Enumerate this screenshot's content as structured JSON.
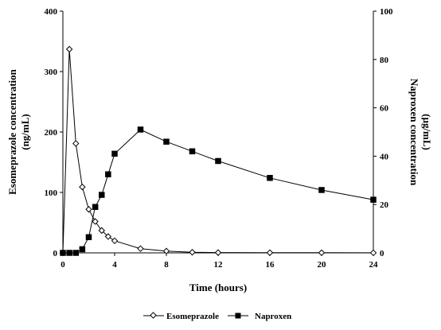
{
  "chart_data": {
    "type": "line",
    "xlabel": "Time  (hours)",
    "ylabel_left_line1": "Esomeprazole concentration",
    "ylabel_left_line2": "(ng/mL)",
    "ylabel_right_line1": "Naproxen concentration",
    "ylabel_right_line2": "(µg/mL)",
    "xlim": [
      0,
      24
    ],
    "ylim_left": [
      0,
      400
    ],
    "ylim_right": [
      0,
      100
    ],
    "x_ticks": [
      0,
      4,
      8,
      12,
      16,
      20,
      24
    ],
    "y_left_ticks": [
      0,
      100,
      200,
      300,
      400
    ],
    "y_right_ticks": [
      0,
      20,
      40,
      60,
      80,
      100
    ],
    "grid": false,
    "legend_position": "bottom-center",
    "series": [
      {
        "name": "Esomeprazole",
        "axis": "left",
        "marker": "diamond-open",
        "color": "#000000",
        "x": [
          0,
          0.5,
          1,
          1.5,
          2,
          2.5,
          3,
          3.5,
          4,
          6,
          8,
          10,
          12,
          16,
          20,
          24
        ],
        "y": [
          0,
          337,
          181,
          109,
          72,
          52,
          37,
          27,
          20,
          7,
          3,
          1,
          0.5,
          0.3,
          0.2,
          0.1
        ]
      },
      {
        "name": "Naproxen",
        "axis": "right",
        "marker": "square-filled",
        "color": "#000000",
        "x": [
          0,
          0.5,
          1,
          1.5,
          2,
          2.5,
          3,
          3.5,
          4,
          6,
          8,
          10,
          12,
          16,
          20,
          24
        ],
        "y": [
          0,
          0,
          0,
          1.5,
          6.5,
          19,
          24,
          32.5,
          41,
          51,
          46,
          42,
          38,
          31,
          26,
          22
        ]
      }
    ]
  }
}
